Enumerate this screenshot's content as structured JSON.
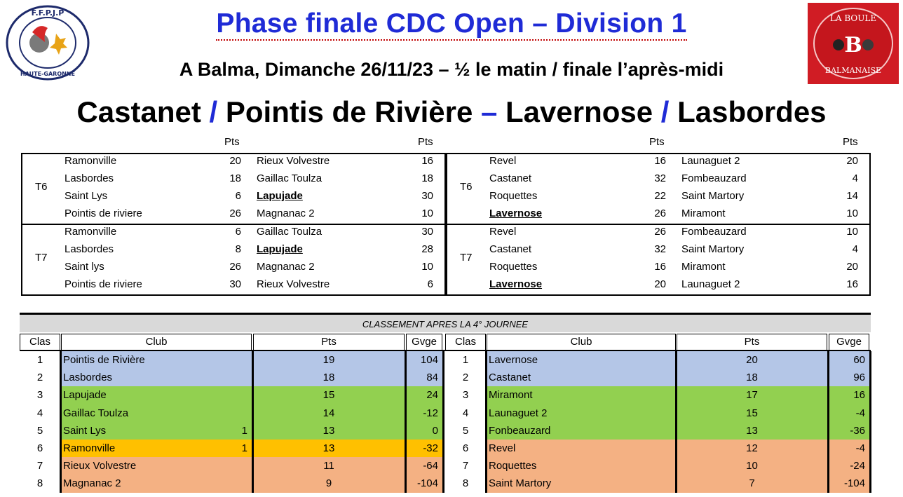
{
  "header": {
    "logo_left_text": "F.F.P.J.P - HAUTE-GARONNE",
    "logo_right_text": "LA BOULE BALMANAISE",
    "title": "Phase finale CDC Open – Division 1",
    "subtitle": "A Balma, Dimanche 26/11/23 – ½ le matin / finale l’après-midi",
    "matchup": {
      "team1": "Castanet",
      "sep1": "/",
      "team2": "Pointis de Rivière",
      "sep2": "–",
      "team3": "Lavernose",
      "sep3": "/",
      "team4": "Lasbordes"
    }
  },
  "results": {
    "pts_label": "Pts",
    "left": [
      {
        "round": "T6",
        "matches": [
          {
            "home": "Ramonville",
            "home_pts": "20",
            "away": "Rieux Volvestre",
            "away_pts": "16"
          },
          {
            "home": "Lasbordes",
            "home_pts": "18",
            "away": "Gaillac Toulza",
            "away_pts": "18"
          },
          {
            "home": "Saint Lys",
            "home_pts": "6",
            "away": "Lapujade",
            "away_pts": "30",
            "away_bold": true
          },
          {
            "home": "Pointis de riviere",
            "home_pts": "26",
            "away": "Magnanac 2",
            "away_pts": "10"
          }
        ]
      },
      {
        "round": "T7",
        "matches": [
          {
            "home": "Ramonville",
            "home_pts": "6",
            "away": "Gaillac Toulza",
            "away_pts": "30"
          },
          {
            "home": "Lasbordes",
            "home_pts": "8",
            "away": "Lapujade",
            "away_pts": "28",
            "away_bold": true
          },
          {
            "home": "Saint lys",
            "home_pts": "26",
            "away": "Magnanac 2",
            "away_pts": "10"
          },
          {
            "home": "Pointis de riviere",
            "home_pts": "30",
            "away": "Rieux Volvestre",
            "away_pts": "6"
          }
        ]
      }
    ],
    "right": [
      {
        "round": "T6",
        "matches": [
          {
            "home": "Revel",
            "home_pts": "16",
            "away": "Launaguet 2",
            "away_pts": "20"
          },
          {
            "home": "Castanet",
            "home_pts": "32",
            "away": "Fombeauzard",
            "away_pts": "4"
          },
          {
            "home": "Roquettes",
            "home_pts": "22",
            "away": "Saint Martory",
            "away_pts": "14"
          },
          {
            "home": "Lavernose",
            "home_pts": "26",
            "away": "Miramont",
            "away_pts": "10",
            "home_bold": true
          }
        ]
      },
      {
        "round": "T7",
        "matches": [
          {
            "home": "Revel",
            "home_pts": "26",
            "away": "Fombeauzard",
            "away_pts": "10"
          },
          {
            "home": "Castanet",
            "home_pts": "32",
            "away": "Saint Martory",
            "away_pts": "4"
          },
          {
            "home": "Roquettes",
            "home_pts": "16",
            "away": "Miramont",
            "away_pts": "20"
          },
          {
            "home": "Lavernose",
            "home_pts": "20",
            "away": "Launaguet 2",
            "away_pts": "16",
            "home_bold": true
          }
        ]
      }
    ]
  },
  "standings": {
    "title": "CLASSEMENT APRES LA 4° JOURNEE",
    "headers": {
      "clas": "Clas",
      "club": "Club",
      "pts": "Pts",
      "gvge": "Gvge"
    },
    "colors": {
      "blue": "#b4c6e7",
      "green": "#92d050",
      "orange": "#ffc000",
      "salmon": "#f4b183"
    },
    "left": [
      {
        "rank": "1",
        "club": "Pointis de Rivière",
        "note": "",
        "pts": "19",
        "gvge": "104",
        "color": "blue"
      },
      {
        "rank": "2",
        "club": "Lasbordes",
        "note": "",
        "pts": "18",
        "gvge": "84",
        "color": "blue"
      },
      {
        "rank": "3",
        "club": "Lapujade",
        "note": "",
        "pts": "15",
        "gvge": "24",
        "color": "green"
      },
      {
        "rank": "4",
        "club": "Gaillac Toulza",
        "note": "",
        "pts": "14",
        "gvge": "-12",
        "color": "green"
      },
      {
        "rank": "5",
        "club": "Saint Lys",
        "note": "1",
        "pts": "13",
        "gvge": "0",
        "color": "green"
      },
      {
        "rank": "6",
        "club": "Ramonville",
        "note": "1",
        "pts": "13",
        "gvge": "-32",
        "color": "orange"
      },
      {
        "rank": "7",
        "club": "Rieux Volvestre",
        "note": "",
        "pts": "11",
        "gvge": "-64",
        "color": "salmon"
      },
      {
        "rank": "8",
        "club": "Magnanac 2",
        "note": "",
        "pts": "9",
        "gvge": "-104",
        "color": "salmon"
      }
    ],
    "right": [
      {
        "rank": "1",
        "club": "Lavernose",
        "note": "",
        "pts": "20",
        "gvge": "60",
        "color": "blue"
      },
      {
        "rank": "2",
        "club": "Castanet",
        "note": "",
        "pts": "18",
        "gvge": "96",
        "color": "blue"
      },
      {
        "rank": "3",
        "club": "Miramont",
        "note": "",
        "pts": "17",
        "gvge": "16",
        "color": "green"
      },
      {
        "rank": "4",
        "club": "Launaguet 2",
        "note": "",
        "pts": "15",
        "gvge": "-4",
        "color": "green"
      },
      {
        "rank": "5",
        "club": "Fonbeauzard",
        "note": "",
        "pts": "13",
        "gvge": "-36",
        "color": "green"
      },
      {
        "rank": "6",
        "club": "Revel",
        "note": "",
        "pts": "12",
        "gvge": "-4",
        "color": "salmon"
      },
      {
        "rank": "7",
        "club": "Roquettes",
        "note": "",
        "pts": "10",
        "gvge": "-24",
        "color": "salmon"
      },
      {
        "rank": "8",
        "club": "Saint Martory",
        "note": "",
        "pts": "7",
        "gvge": "-104",
        "color": "salmon"
      }
    ]
  }
}
